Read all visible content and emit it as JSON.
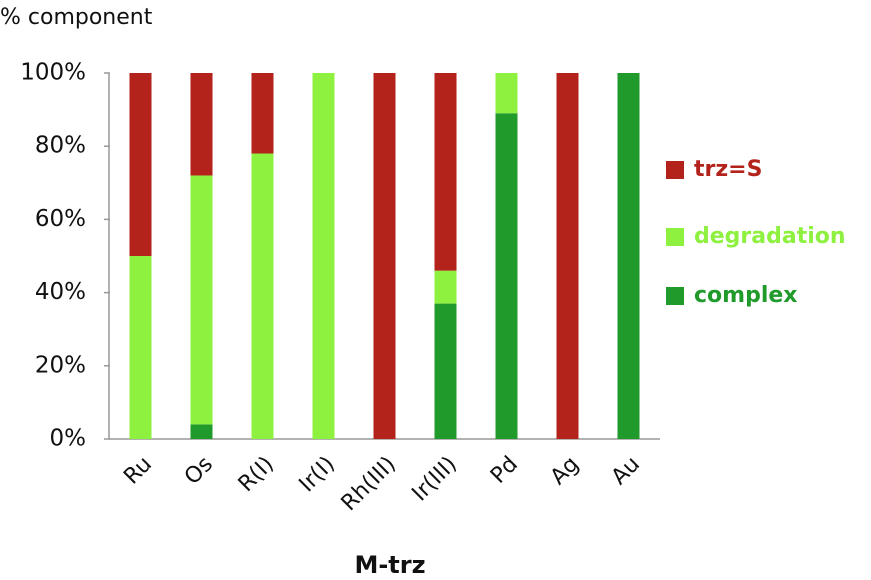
{
  "chart_data": {
    "type": "stacked-bar",
    "ylabel": "% component",
    "xlabel": "M-trz",
    "categories": [
      "Ru",
      "Os",
      "R(I)",
      "Ir(I)",
      "Rh(III)",
      "Ir(III)",
      "Pd",
      "Ag",
      "Au"
    ],
    "series": [
      {
        "name": "complex",
        "color": "#1f9a2b",
        "values": [
          0,
          4,
          0,
          0,
          0,
          37,
          89,
          0,
          100
        ]
      },
      {
        "name": "degradation",
        "color": "#8ef03f",
        "values": [
          50,
          68,
          78,
          100,
          0,
          9,
          11,
          0,
          0
        ]
      },
      {
        "name": "trz=S",
        "color": "#b3221b",
        "values": [
          50,
          28,
          22,
          0,
          100,
          54,
          0,
          100,
          0
        ]
      }
    ],
    "ylim": [
      0,
      100
    ],
    "yticks": [
      {
        "value": 0,
        "label": "0%"
      },
      {
        "value": 20,
        "label": "20%"
      },
      {
        "value": 40,
        "label": "40%"
      },
      {
        "value": 60,
        "label": "60%"
      },
      {
        "value": 80,
        "label": "80%"
      },
      {
        "value": 100,
        "label": "100%"
      }
    ],
    "legend": "right"
  }
}
